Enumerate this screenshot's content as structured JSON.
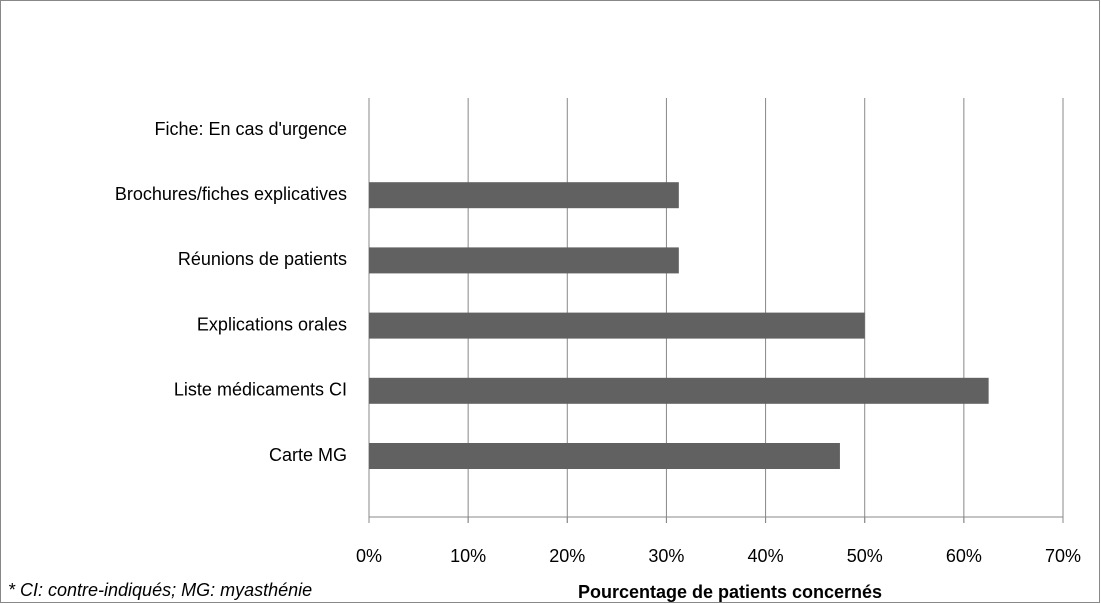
{
  "chart_data": {
    "type": "bar",
    "orientation": "horizontal",
    "x_label": "Pourcentage de patients concernés",
    "footnote": "* CI: contre-indiqués; MG: myasthénie",
    "categories": [
      "Fiche: En cas d'urgence",
      "Brochures/fiches explicatives",
      "Réunions de patients",
      "Explications orales",
      "Liste médicaments CI",
      "Carte MG"
    ],
    "values": [
      0,
      31.25,
      31.25,
      50,
      62.5,
      47.5
    ],
    "color": "#616161",
    "xlim": [
      0,
      70
    ],
    "xticks": [
      {
        "value": 0,
        "label": "0%"
      },
      {
        "value": 10,
        "label": "10%"
      },
      {
        "value": 20,
        "label": "20%"
      },
      {
        "value": 30,
        "label": "30%"
      },
      {
        "value": 40,
        "label": "40%"
      },
      {
        "value": 50,
        "label": "50%"
      },
      {
        "value": 60,
        "label": "60%"
      },
      {
        "value": 70,
        "label": "70%"
      }
    ],
    "grid": true
  }
}
